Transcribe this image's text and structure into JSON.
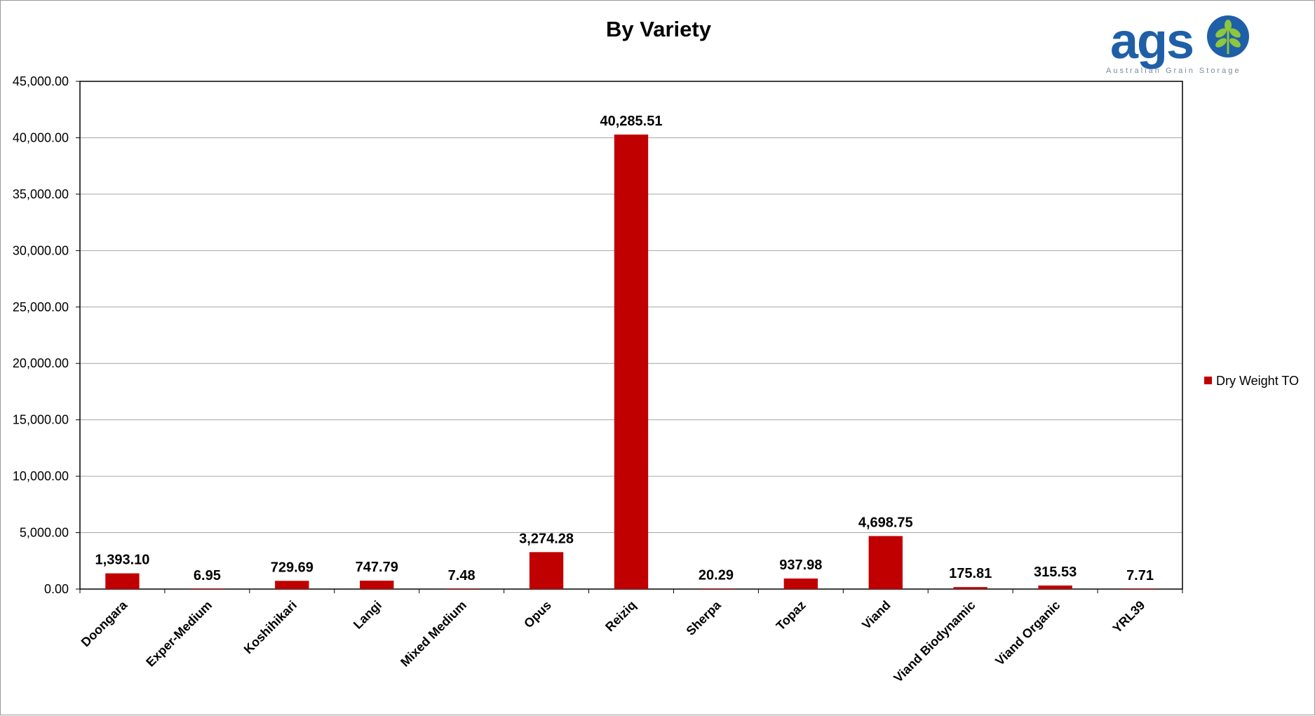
{
  "logo": {
    "wordmark": "ags",
    "tagline": "Australian Grain Storage",
    "brand_color": "#1f5fa8",
    "leaf_color": "#8dc63f"
  },
  "chart_data": {
    "type": "bar",
    "title": "By Variety",
    "xlabel": "",
    "ylabel": "",
    "ylim": [
      0,
      45000
    ],
    "yticks": [
      "0.00",
      "5,000.00",
      "10,000.00",
      "15,000.00",
      "20,000.00",
      "25,000.00",
      "30,000.00",
      "35,000.00",
      "40,000.00",
      "45,000.00"
    ],
    "ytick_values": [
      0,
      5000,
      10000,
      15000,
      20000,
      25000,
      30000,
      35000,
      40000,
      45000
    ],
    "grid": true,
    "legend_position": "right",
    "categories": [
      "Doongara",
      "Exper-Medium",
      "Koshihikari",
      "Langi",
      "Mixed Medium",
      "Opus",
      "Reiziq",
      "Sherpa",
      "Topaz",
      "Viand",
      "Viand Biodynamic",
      "Viand Organic",
      "YRL39"
    ],
    "series": [
      {
        "name": "Dry Weight TO",
        "color": "#c00000",
        "values": [
          1393.1,
          6.95,
          729.69,
          747.79,
          7.48,
          3274.28,
          40285.51,
          20.29,
          937.98,
          4698.75,
          175.81,
          315.53,
          7.71
        ],
        "labels": [
          "1,393.10",
          "6.95",
          "729.69",
          "747.79",
          "7.48",
          "3,274.28",
          "40,285.51",
          "20.29",
          "937.98",
          "4,698.75",
          "175.81",
          "315.53",
          "7.71"
        ]
      }
    ]
  }
}
